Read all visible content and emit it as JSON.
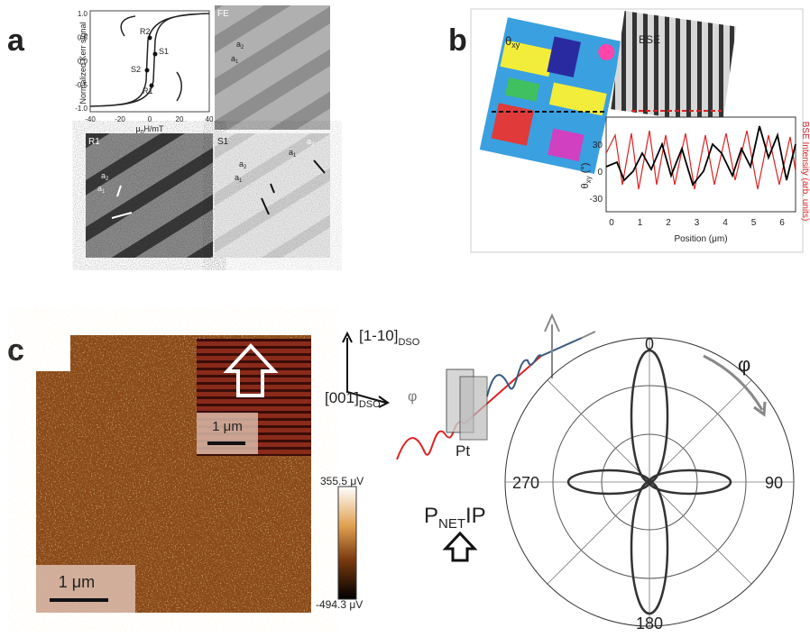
{
  "a": {
    "label": "a",
    "loop": {
      "y_label": "Normalized Kerr signal",
      "x_label": [
        "μ",
        "0",
        "H/mT"
      ],
      "yticks": [
        "1.0",
        "0.5",
        "0.0",
        "-0.5",
        "-1.0"
      ],
      "xticks": [
        "-40",
        "-20",
        "0",
        "20",
        "40"
      ],
      "points": [
        "R2",
        "S1",
        "S2",
        "R1"
      ]
    },
    "fe": {
      "title": "FE",
      "domains": [
        [
          "a",
          "2"
        ],
        [
          "a",
          "1"
        ]
      ]
    },
    "r1": {
      "title": "R1",
      "domains": [
        [
          "a",
          "2"
        ],
        [
          "a",
          "1"
        ]
      ]
    },
    "s1": {
      "title": "S1",
      "domains": [
        [
          "a",
          "2"
        ],
        [
          "a",
          "1"
        ],
        [
          "a",
          "1"
        ],
        [
          "a",
          "2"
        ]
      ]
    }
  },
  "b": {
    "label": "b",
    "map_label": [
      "θ",
      "xy"
    ],
    "image_label": "BSE",
    "plot": {
      "y_label": [
        "θ",
        "xy",
        " (°)"
      ],
      "y2_label": "BSE Intensity (arb. units)",
      "x_label": "Position (μm)",
      "yticks": [
        "30",
        "0",
        "-30"
      ],
      "xticks": [
        "0",
        "1",
        "2",
        "3",
        "4",
        "5",
        "6"
      ]
    }
  },
  "c": {
    "label": "c",
    "scale_main": "1 μm",
    "scale_inset": "1 μm",
    "colorbar": [
      "355.5 μV",
      "-494.3 μV"
    ],
    "axis1": [
      "[1-10]",
      "DSO"
    ],
    "axis2": [
      "[001]",
      "DSO"
    ],
    "angle": "φ",
    "metal": "Pt",
    "polarization": [
      "P",
      "NET",
      "IP"
    ],
    "polar": {
      "angles": [
        "0",
        "90",
        "180",
        "270"
      ],
      "angle_label": "φ"
    }
  }
}
